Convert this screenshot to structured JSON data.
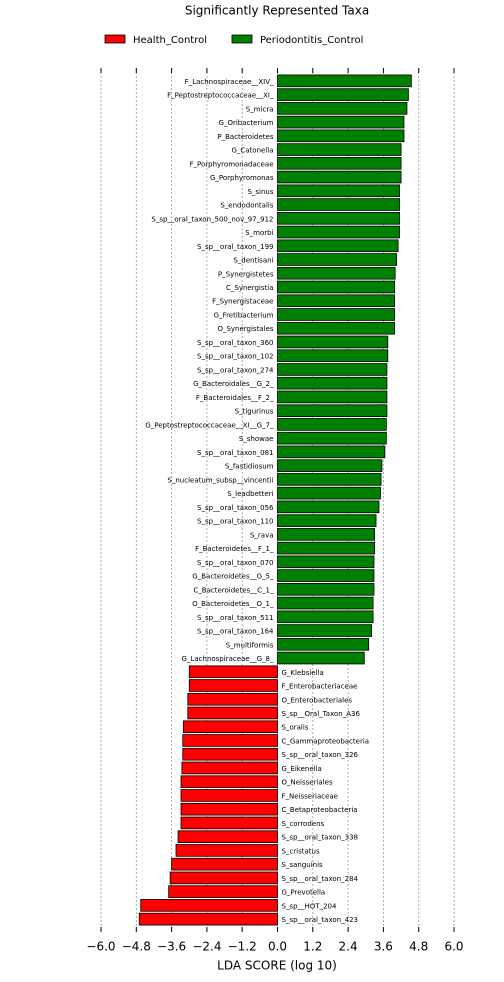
{
  "chart_data": {
    "type": "bar",
    "orientation": "horizontal",
    "title": "Significantly Represented Taxa",
    "xlabel": "LDA SCORE (log 10)",
    "xlim": [
      -6.0,
      6.0
    ],
    "xticks": [
      {
        "value": -6.0,
        "label": "−6.0"
      },
      {
        "value": -4.8,
        "label": "−4.8"
      },
      {
        "value": -3.6,
        "label": "−3.6"
      },
      {
        "value": -2.4,
        "label": "−2.4"
      },
      {
        "value": -1.2,
        "label": "−1.2"
      },
      {
        "value": 0,
        "label": "0.0"
      },
      {
        "value": 1.2,
        "label": "1.2"
      },
      {
        "value": 2.4,
        "label": "2.4"
      },
      {
        "value": 3.6,
        "label": "3.6"
      },
      {
        "value": 4.8,
        "label": "4.8"
      },
      {
        "value": 6.0,
        "label": "6.0"
      }
    ],
    "grid": true,
    "series": [
      {
        "name": "Health_Control",
        "color": "#ff0000",
        "categories": [
          "G_Klebsiella",
          "F_Enterobacteriaceae",
          "O_Enterobacteriales",
          "S_sp__Oral_Taxon_A36",
          "S_oralis",
          "C_Gammaproteobacteria",
          "S_sp__oral_taxon_326",
          "G_Eikenella",
          "O_Neisseriales",
          "F_Neisseriaceae",
          "C_Betaproteobacteria",
          "S_corrodens",
          "S_sp__oral_taxon_338",
          "S_cristatus",
          "S_sanguinis",
          "S_sp__oral_taxon_284",
          "G_Prevotella",
          "S_sp__HOT_204",
          "S_sp__oral_taxon_423"
        ],
        "values": [
          -3.0,
          -3.0,
          -3.05,
          -3.05,
          -3.2,
          -3.22,
          -3.22,
          -3.25,
          -3.28,
          -3.28,
          -3.28,
          -3.28,
          -3.38,
          -3.45,
          -3.6,
          -3.65,
          -3.7,
          -4.65,
          -4.7
        ]
      },
      {
        "name": "Periodontitis_Control",
        "color": "#008000",
        "categories": [
          "F_Lachnospiraceae__XIV_",
          "F_Peptostreptococcaceae__XI_",
          "S_micra",
          "G_Oribacterium",
          "P_Bacteroidetes",
          "G_Catonella",
          "F_Porphyromonadaceae",
          "G_Porphyromonas",
          "S_sinus",
          "S_endodontalis",
          "S_sp__oral_taxon_500_nov_97_912",
          "S_morbi",
          "S_sp__oral_taxon_199",
          "S_dentisani",
          "P_Synergistetes",
          "C_Synergistia",
          "F_Synergistaceae",
          "G_Fretibacterium",
          "O_Synergistales",
          "S_sp__oral_taxon_360",
          "S_sp__oral_taxon_102",
          "S_sp__oral_taxon_274",
          "G_Bacteroidales__G_2_",
          "F_Bacteroidales__F_2_",
          "S_tigurinus",
          "G_Peptostreptococcaceae__XI__G_7_",
          "S_showae",
          "S_sp__oral_taxon_081",
          "S_fastidiosum",
          "S_nucleatum_subsp__vincentii",
          "S_leadbetteri",
          "S_sp__oral_taxon_056",
          "S_sp__oral_taxon_110",
          "S_rava",
          "F_Bacteroidetes__F_1_",
          "S_sp__oral_taxon_070",
          "G_Bacteroidetes__G_5_",
          "C_Bacteroidetes__C_1_",
          "O_Bacteroidetes__O_1_",
          "S_sp__oral_taxon_511",
          "S_sp__oral_taxon_164",
          "S_multiformis",
          "G_Lachnospiraceae__G_8_"
        ],
        "values": [
          4.55,
          4.45,
          4.4,
          4.3,
          4.3,
          4.2,
          4.2,
          4.2,
          4.15,
          4.15,
          4.15,
          4.15,
          4.1,
          4.05,
          4.0,
          3.98,
          3.98,
          3.98,
          3.98,
          3.75,
          3.75,
          3.72,
          3.72,
          3.72,
          3.72,
          3.7,
          3.7,
          3.65,
          3.55,
          3.52,
          3.5,
          3.45,
          3.35,
          3.3,
          3.3,
          3.28,
          3.28,
          3.28,
          3.25,
          3.25,
          3.2,
          3.1,
          2.95
        ]
      }
    ]
  }
}
